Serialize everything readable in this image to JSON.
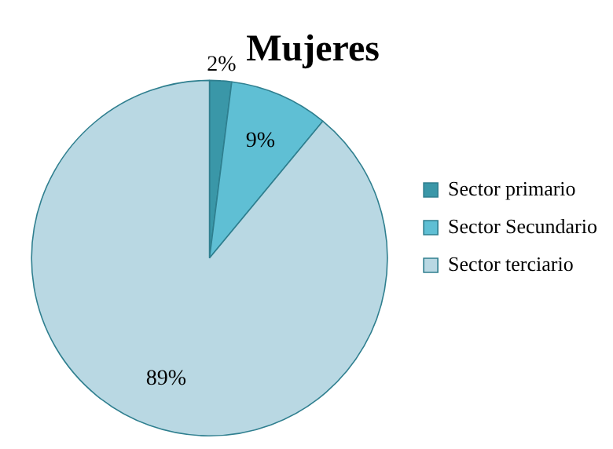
{
  "chart_data": {
    "type": "pie",
    "title": "Mujeres",
    "categories": [
      "Sector primario",
      "Sector Secundario",
      "Sector terciario"
    ],
    "values": [
      2,
      9,
      89
    ],
    "colors": [
      "#3a97a8",
      "#5fbfd4",
      "#b9d8e3"
    ],
    "value_labels": [
      "2%",
      "9%",
      "89%"
    ],
    "legend": "right"
  }
}
